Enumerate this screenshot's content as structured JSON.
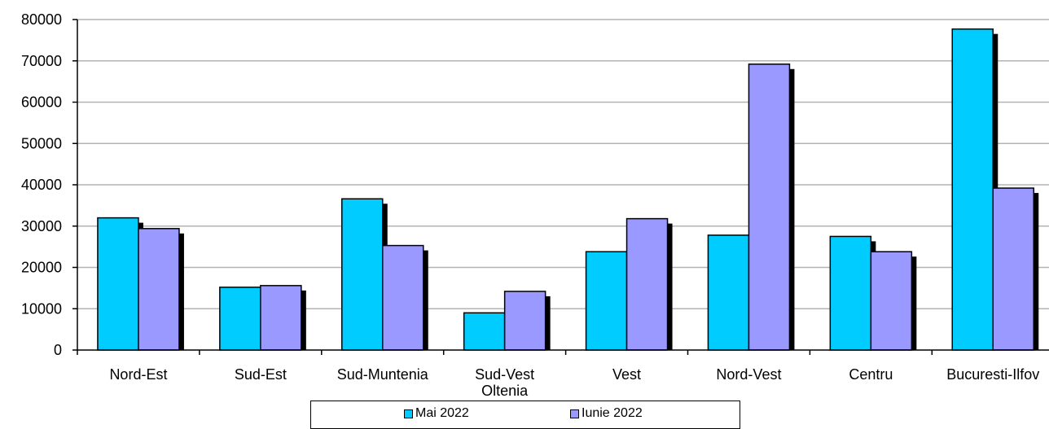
{
  "chart_data": {
    "type": "bar",
    "categories": [
      "Nord-Est",
      "Sud-Est",
      "Sud-Muntenia",
      "Sud-Vest\nOltenia",
      "Vest",
      "Nord-Vest",
      "Centru",
      "Bucuresti-Ilfov"
    ],
    "series": [
      {
        "name": "Mai 2022",
        "color": "#00ccff",
        "values": [
          32000,
          15200,
          36600,
          9000,
          23800,
          27800,
          27500,
          77700
        ]
      },
      {
        "name": "Iunie 2022",
        "color": "#9999ff",
        "values": [
          29400,
          15600,
          25300,
          14200,
          31800,
          69200,
          23800,
          39200
        ]
      }
    ],
    "ylim": [
      0,
      80000
    ],
    "yticks": [
      "0",
      "10000",
      "20000",
      "30000",
      "40000",
      "50000",
      "60000",
      "70000",
      "80000"
    ],
    "grid": true,
    "legend_position": "bottom"
  }
}
